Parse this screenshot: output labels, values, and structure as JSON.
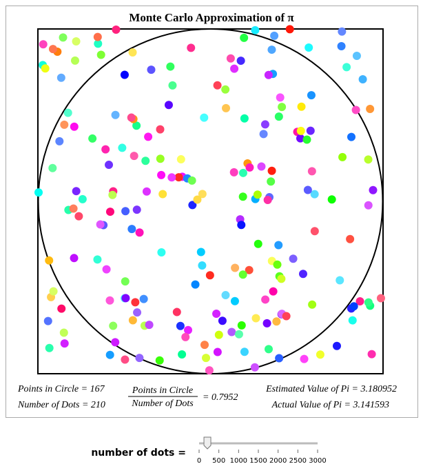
{
  "title": "Monte Carlo Approximation of π",
  "stats": {
    "points_in_circle_label": "Points in Circle =",
    "points_in_circle": 167,
    "number_of_dots_label": "Number of Dots =",
    "number_of_dots": 210,
    "fraction_numerator": "Points in Circle",
    "fraction_denominator": "Number of Dots",
    "fraction_equals": "=",
    "ratio": 0.7952,
    "estimated_label": "Estimated Value of Pi =",
    "estimated_value": 3.180952,
    "actual_label": "Actual Value of Pi =",
    "actual_value": 3.141593
  },
  "slider": {
    "label": "number of dots =",
    "min": 0,
    "max": 3000,
    "ticks": [
      0,
      500,
      1000,
      1500,
      2000,
      2500,
      3000
    ]
  }
}
